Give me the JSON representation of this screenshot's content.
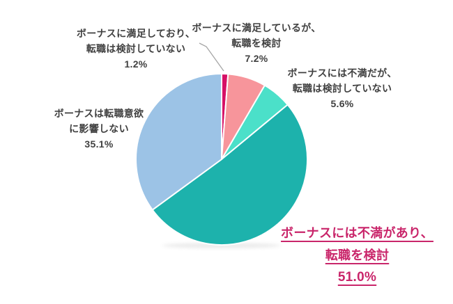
{
  "chart_data": {
    "type": "pie",
    "title": "",
    "unit": "%",
    "start_angle_deg": 0,
    "direction": "clockwise",
    "legend_position": "none",
    "labels_outside": true,
    "slices": [
      {
        "label": "ボーナスに満足しており、転職は検討していない",
        "value": 1.2,
        "color": "#d61066",
        "emphasis": false
      },
      {
        "label": "ボーナスに満足しているが、転職を検討",
        "value": 7.2,
        "color": "#f7959b",
        "emphasis": false
      },
      {
        "label": "ボーナスには不満だが、転職は検討していない",
        "value": 5.6,
        "color": "#4be0c9",
        "emphasis": false
      },
      {
        "label": "ボーナスには不満があり、転職を検討",
        "value": 51.0,
        "color": "#1db2ac",
        "emphasis": true
      },
      {
        "label": "ボーナスは転職意欲に影響しない",
        "value": 35.1,
        "color": "#9cc3e6",
        "emphasis": false
      }
    ]
  },
  "labels": [
    {
      "line1": "ボーナスに満足しており、",
      "line2": "転職は検討していない",
      "pct": "1.2%"
    },
    {
      "line1": "ボーナスに満足しているが、",
      "line2": "転職を検討",
      "pct": "7.2%"
    },
    {
      "line1": "ボーナスには不満だが、",
      "line2": "転職は検討していない",
      "pct": "5.6%"
    },
    {
      "line1": "ボーナスには不満があり、",
      "line2": "転職を検討",
      "pct": "51.0%"
    },
    {
      "line1": "ボーナスは転職意欲",
      "line2": "に影響しない",
      "pct": "35.1%"
    }
  ],
  "colors": {
    "background": "#ffffff",
    "text": "#404040",
    "emphasis_text": "#c9256a",
    "slice_border": "#ffffff",
    "leader_line": "#a6a6a6"
  }
}
